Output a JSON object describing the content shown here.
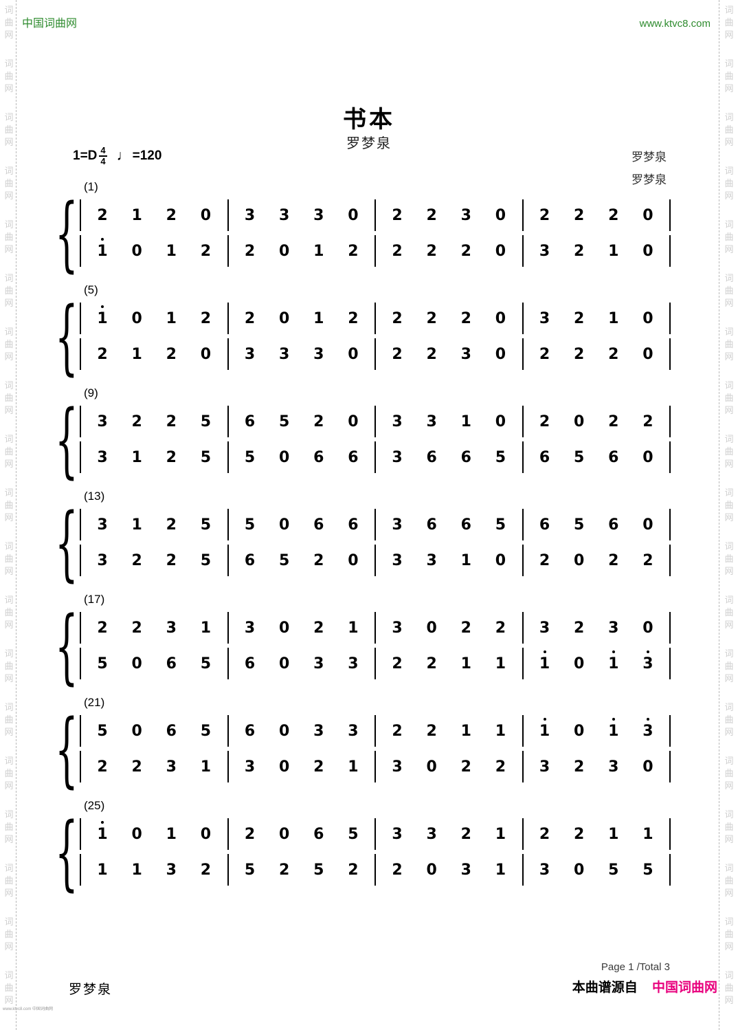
{
  "page": {
    "header_left": "中国词曲网",
    "header_right": "www.ktvc8.com",
    "side_watermark_chars": [
      "词",
      "曲",
      "网"
    ],
    "footer_left_author": "罗梦泉",
    "footer_tiny": "www.ktvc8.com 中国词曲网",
    "footer_page": "Page 1 /Total 3",
    "footer_source_prefix": "本曲谱源自",
    "footer_source_site": "中国词曲网",
    "colors": {
      "brand_green": "#2e8b2e",
      "brand_magenta": "#e8007d",
      "watermark_gray": "#cfcfcf"
    }
  },
  "score": {
    "title": "书本",
    "subtitle": "罗梦泉",
    "composer_right_1": "罗梦泉",
    "composer_right_2": "罗梦泉",
    "key_signature": "1=D",
    "time_signature_numerator": "4",
    "time_signature_denominator": "4",
    "tempo_note_glyph": "♩",
    "tempo_text": "=120",
    "notation": "jianpu-numbered",
    "systems": [
      {
        "label": "(1)",
        "upper": [
          [
            "2",
            "1",
            "2",
            "0"
          ],
          [
            "3",
            "3",
            "3",
            "0"
          ],
          [
            "2",
            "2",
            "3",
            "0"
          ],
          [
            "2",
            "2",
            "2",
            "0"
          ]
        ],
        "lower": [
          [
            "1'",
            "0",
            "1",
            "2"
          ],
          [
            "2",
            "0",
            "1",
            "2"
          ],
          [
            "2",
            "2",
            "2",
            "0"
          ],
          [
            "3",
            "2",
            "1",
            "0"
          ]
        ]
      },
      {
        "label": "(5)",
        "upper": [
          [
            "1'",
            "0",
            "1",
            "2"
          ],
          [
            "2",
            "0",
            "1",
            "2"
          ],
          [
            "2",
            "2",
            "2",
            "0"
          ],
          [
            "3",
            "2",
            "1",
            "0"
          ]
        ],
        "lower": [
          [
            "2",
            "1",
            "2",
            "0"
          ],
          [
            "3",
            "3",
            "3",
            "0"
          ],
          [
            "2",
            "2",
            "3",
            "0"
          ],
          [
            "2",
            "2",
            "2",
            "0"
          ]
        ]
      },
      {
        "label": "(9)",
        "upper": [
          [
            "3",
            "2",
            "2",
            "5"
          ],
          [
            "6",
            "5",
            "2",
            "0"
          ],
          [
            "3",
            "3",
            "1",
            "0"
          ],
          [
            "2",
            "0",
            "2",
            "2"
          ]
        ],
        "lower": [
          [
            "3",
            "1",
            "2",
            "5"
          ],
          [
            "5",
            "0",
            "6",
            "6"
          ],
          [
            "3",
            "6",
            "6",
            "5"
          ],
          [
            "6",
            "5",
            "6",
            "0"
          ]
        ]
      },
      {
        "label": "(13)",
        "upper": [
          [
            "3",
            "1",
            "2",
            "5"
          ],
          [
            "5",
            "0",
            "6",
            "6"
          ],
          [
            "3",
            "6",
            "6",
            "5"
          ],
          [
            "6",
            "5",
            "6",
            "0"
          ]
        ],
        "lower": [
          [
            "3",
            "2",
            "2",
            "5"
          ],
          [
            "6",
            "5",
            "2",
            "0"
          ],
          [
            "3",
            "3",
            "1",
            "0"
          ],
          [
            "2",
            "0",
            "2",
            "2"
          ]
        ]
      },
      {
        "label": "(17)",
        "upper": [
          [
            "2",
            "2",
            "3",
            "1"
          ],
          [
            "3",
            "0",
            "2",
            "1"
          ],
          [
            "3",
            "0",
            "2",
            "2"
          ],
          [
            "3",
            "2",
            "3",
            "0"
          ]
        ],
        "lower": [
          [
            "5",
            "0",
            "6",
            "5"
          ],
          [
            "6",
            "0",
            "3",
            "3"
          ],
          [
            "2",
            "2",
            "1",
            "1"
          ],
          [
            "1'",
            "0",
            "1'",
            "3'"
          ]
        ]
      },
      {
        "label": "(21)",
        "upper": [
          [
            "5",
            "0",
            "6",
            "5"
          ],
          [
            "6",
            "0",
            "3",
            "3"
          ],
          [
            "2",
            "2",
            "1",
            "1"
          ],
          [
            "1'",
            "0",
            "1'",
            "3'"
          ]
        ],
        "lower": [
          [
            "2",
            "2",
            "3",
            "1"
          ],
          [
            "3",
            "0",
            "2",
            "1"
          ],
          [
            "3",
            "0",
            "2",
            "2"
          ],
          [
            "3",
            "2",
            "3",
            "0"
          ]
        ]
      },
      {
        "label": "(25)",
        "upper": [
          [
            "1'",
            "0",
            "1",
            "0"
          ],
          [
            "2",
            "0",
            "6",
            "5"
          ],
          [
            "3",
            "3",
            "2",
            "1"
          ],
          [
            "2",
            "2",
            "1",
            "1"
          ]
        ],
        "lower": [
          [
            "1",
            "1",
            "3",
            "2"
          ],
          [
            "5",
            "2",
            "5",
            "2"
          ],
          [
            "2",
            "0",
            "3",
            "1"
          ],
          [
            "3",
            "0",
            "5",
            "5"
          ]
        ]
      }
    ]
  }
}
